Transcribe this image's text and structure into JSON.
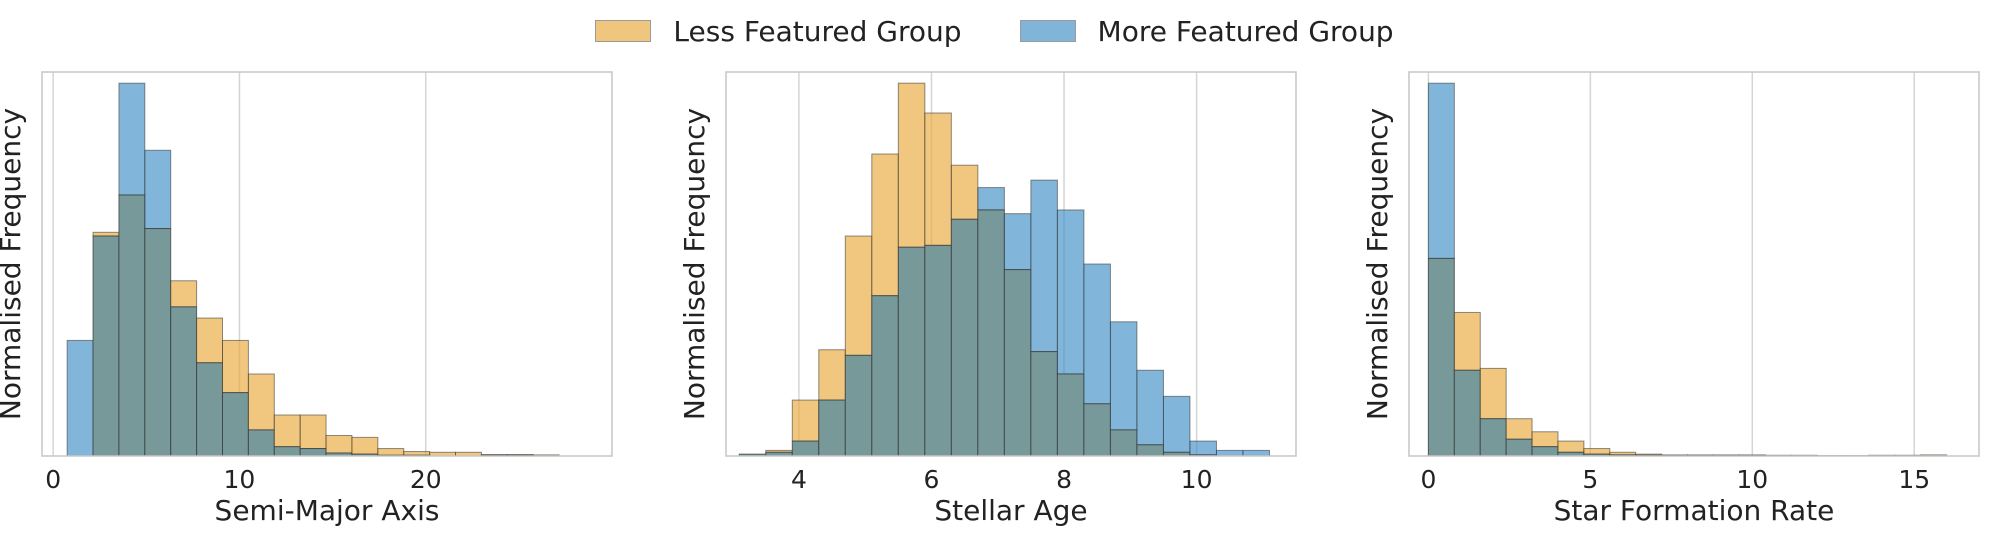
{
  "colors": {
    "less": "#E9A93A",
    "more": "#3D8FC6",
    "edge": "#333333",
    "overlap": "#77999A",
    "grid": "#D5D5D5",
    "frame": "#C6C6C6"
  },
  "legend": [
    {
      "label": "Less Featured Group",
      "color": "#E9A93A"
    },
    {
      "label": "More Featured Group",
      "color": "#3D8FC6"
    }
  ],
  "chart_data": [
    {
      "type": "bar",
      "chart": "histogram",
      "xlabel": "Semi-Major Axis",
      "ylabel": "Normalised Frequency",
      "xlim": [
        -0.6,
        30
      ],
      "ylim": [
        0,
        1.03
      ],
      "xticks": [
        0,
        10,
        20
      ],
      "grid": "vertical",
      "legend_position": "top-center",
      "bin_edges": [
        0.75,
        2.14,
        3.53,
        4.92,
        6.31,
        7.7,
        9.09,
        10.48,
        11.87,
        13.26,
        14.65,
        16.04,
        17.43,
        18.82,
        20.21,
        21.6,
        22.99,
        24.38,
        25.77,
        27.16,
        28.55
      ],
      "series": [
        {
          "name": "Less Featured Group",
          "values": [
            0.0,
            0.6,
            0.7,
            0.61,
            0.47,
            0.37,
            0.31,
            0.22,
            0.11,
            0.11,
            0.055,
            0.05,
            0.02,
            0.012,
            0.01,
            0.01,
            0.004,
            0.004,
            0.003,
            0.0
          ]
        },
        {
          "name": "More Featured Group",
          "values": [
            0.31,
            0.59,
            1.0,
            0.82,
            0.4,
            0.25,
            0.17,
            0.07,
            0.025,
            0.02,
            0.008,
            0.005,
            0.002,
            0.002,
            0.0,
            0.0,
            0.002,
            0.002,
            0.0,
            0.0
          ]
        }
      ]
    },
    {
      "type": "bar",
      "chart": "histogram",
      "xlabel": "Stellar Age",
      "ylabel": "Normalised Frequency",
      "xlim": [
        2.9,
        11.5
      ],
      "ylim": [
        0,
        1.03
      ],
      "xticks": [
        4,
        6,
        8,
        10
      ],
      "grid": "vertical",
      "bin_edges": [
        3.1,
        3.5,
        3.9,
        4.3,
        4.7,
        5.1,
        5.5,
        5.9,
        6.3,
        6.7,
        7.1,
        7.5,
        7.9,
        8.3,
        8.7,
        9.1,
        9.5,
        9.9,
        10.3,
        10.7,
        11.1
      ],
      "series": [
        {
          "name": "Less Featured Group",
          "values": [
            0.005,
            0.015,
            0.15,
            0.285,
            0.59,
            0.81,
            1.0,
            0.92,
            0.78,
            0.66,
            0.5,
            0.28,
            0.22,
            0.14,
            0.07,
            0.03,
            0.01,
            0.003,
            0.0,
            0.0
          ]
        },
        {
          "name": "More Featured Group",
          "values": [
            0.005,
            0.01,
            0.04,
            0.15,
            0.27,
            0.43,
            0.56,
            0.565,
            0.635,
            0.72,
            0.65,
            0.74,
            0.66,
            0.515,
            0.36,
            0.23,
            0.16,
            0.04,
            0.015,
            0.015
          ]
        }
      ]
    },
    {
      "type": "bar",
      "chart": "histogram",
      "xlabel": "Star Formation Rate",
      "ylabel": "Normalised Frequency",
      "xlim": [
        -0.6,
        17.0
      ],
      "ylim": [
        0,
        1.03
      ],
      "xticks": [
        0,
        5,
        10,
        15
      ],
      "grid": "vertical",
      "bin_edges": [
        0.0,
        0.8,
        1.6,
        2.4,
        3.2,
        4.0,
        4.8,
        5.6,
        6.4,
        7.2,
        8.0,
        8.8,
        9.6,
        10.4,
        11.2,
        12.0,
        12.8,
        13.6,
        14.4,
        15.2,
        16.0
      ],
      "series": [
        {
          "name": "Less Featured Group",
          "values": [
            0.53,
            0.385,
            0.235,
            0.1,
            0.065,
            0.04,
            0.02,
            0.01,
            0.005,
            0.003,
            0.003,
            0.003,
            0.003,
            0.002,
            0.002,
            0.001,
            0.001,
            0.002,
            0.002,
            0.003
          ]
        },
        {
          "name": "More Featured Group",
          "values": [
            1.0,
            0.23,
            0.1,
            0.045,
            0.025,
            0.01,
            0.005,
            0.003,
            0.002,
            0.001,
            0.001,
            0.001,
            0.001,
            0.0,
            0.0,
            0.0,
            0.0,
            0.0,
            0.0,
            0.0
          ]
        }
      ]
    }
  ]
}
